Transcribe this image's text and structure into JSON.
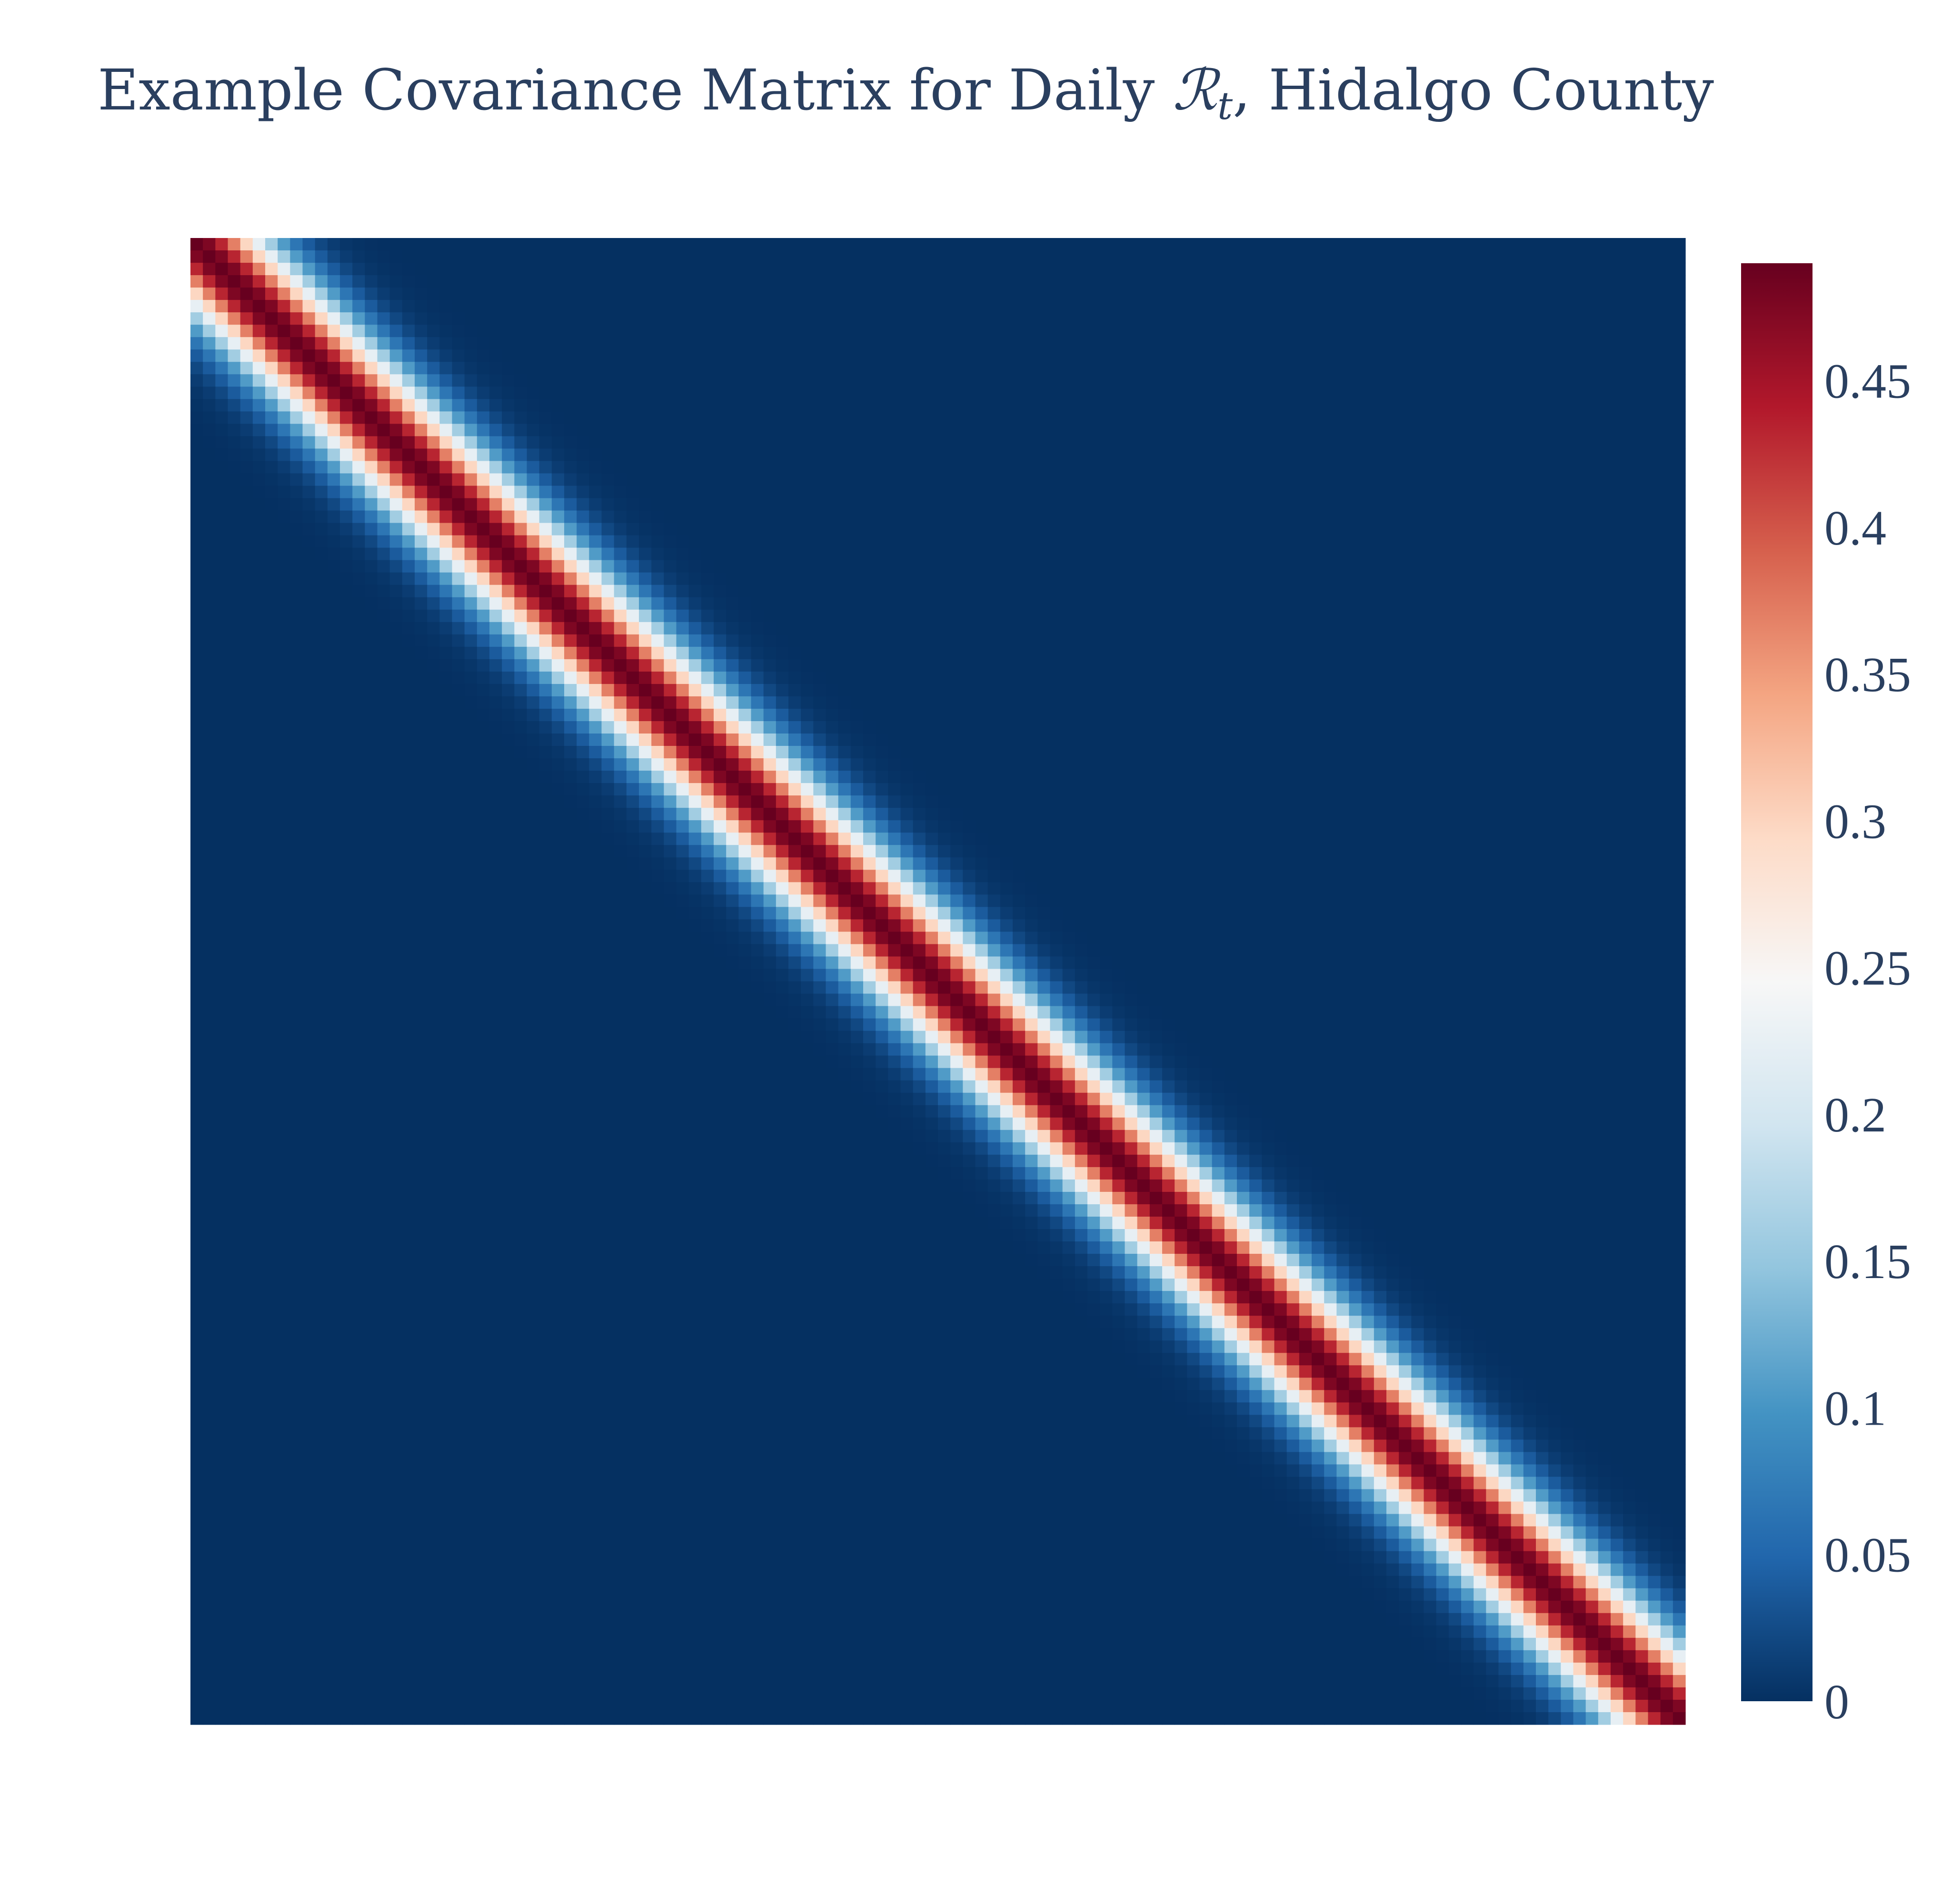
{
  "chart_data": {
    "type": "heatmap",
    "title": {
      "main": "Example Covariance Matrix for Daily ",
      "symbol": "ℛ",
      "subscript": "t",
      "suffix": ", Hidalgo County"
    },
    "xlabel": "",
    "ylabel": "",
    "matrix_size": 120,
    "diagonal_value": 0.49,
    "decay_scale_days": 4,
    "min_value": 0,
    "max_value": 0.49,
    "colorscale": "RdBu (reversed)",
    "colorscale_stops": [
      [
        0.0,
        "#053061"
      ],
      [
        0.1,
        "#2166ac"
      ],
      [
        0.2,
        "#4393c3"
      ],
      [
        0.3,
        "#92c5de"
      ],
      [
        0.4,
        "#d1e5f0"
      ],
      [
        0.5,
        "#f7f7f7"
      ],
      [
        0.6,
        "#fddbc7"
      ],
      [
        0.7,
        "#f4a582"
      ],
      [
        0.8,
        "#d6604d"
      ],
      [
        0.9,
        "#b2182b"
      ],
      [
        1.0,
        "#67001f"
      ]
    ],
    "colorbar": {
      "ticks": [
        0,
        0.05,
        0.1,
        0.15,
        0.2,
        0.25,
        0.3,
        0.35,
        0.4,
        0.45
      ],
      "ticklabels": [
        "0",
        "0.05",
        "0.1",
        "0.15",
        "0.2",
        "0.25",
        "0.3",
        "0.35",
        "0.4",
        "0.45"
      ]
    },
    "grid": false,
    "axes_visible": false
  }
}
